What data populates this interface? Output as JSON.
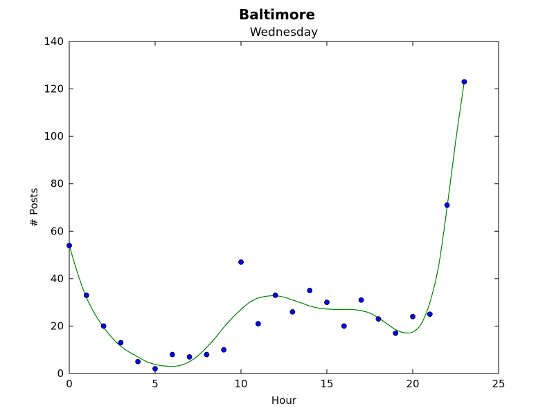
{
  "chart_data": {
    "type": "scatter",
    "title": "Baltimore",
    "subtitle": "Wednesday",
    "xlabel": "Hour",
    "ylabel": "# Posts",
    "xlim": [
      0,
      25
    ],
    "ylim": [
      0,
      140
    ],
    "xticks": [
      0,
      5,
      10,
      15,
      20,
      25
    ],
    "yticks": [
      0,
      20,
      40,
      60,
      80,
      100,
      120,
      140
    ],
    "grid": false,
    "series": [
      {
        "kind": "points",
        "color": "#0000ff",
        "x": [
          0,
          1,
          2,
          3,
          4,
          5,
          6,
          7,
          8,
          9,
          10,
          11,
          12,
          13,
          14,
          15,
          16,
          17,
          18,
          19,
          20,
          21,
          22,
          23
        ],
        "y": [
          54,
          33,
          20,
          13,
          5,
          2,
          8,
          7,
          8,
          10,
          47,
          21,
          33,
          26,
          35,
          30,
          20,
          31,
          23,
          17,
          24,
          25,
          71,
          123
        ]
      },
      {
        "kind": "fit-line",
        "color": "#008000",
        "x": [
          0,
          0.5,
          1,
          1.5,
          2,
          2.5,
          3,
          3.5,
          4,
          4.5,
          5,
          5.5,
          6,
          6.5,
          7,
          7.5,
          8,
          8.5,
          9,
          9.5,
          10,
          10.5,
          11,
          11.5,
          12,
          12.5,
          13,
          13.5,
          14,
          14.5,
          15,
          15.5,
          16,
          16.5,
          17,
          17.5,
          18,
          18.5,
          19,
          19.5,
          20,
          20.5,
          21,
          21.5,
          22,
          22.5,
          23
        ],
        "y": [
          54,
          42,
          32,
          25,
          19.5,
          15,
          11.5,
          9,
          7,
          5,
          3.8,
          3.2,
          3,
          3.5,
          5,
          7.5,
          11,
          15,
          19.5,
          23.5,
          27,
          30,
          31.8,
          32.6,
          32.8,
          32.2,
          31,
          29.8,
          28.5,
          27.6,
          27.2,
          27,
          27,
          27,
          26.5,
          25.5,
          23.5,
          21,
          18.5,
          17.2,
          17.5,
          21,
          30,
          45,
          70,
          98,
          123
        ]
      }
    ]
  }
}
